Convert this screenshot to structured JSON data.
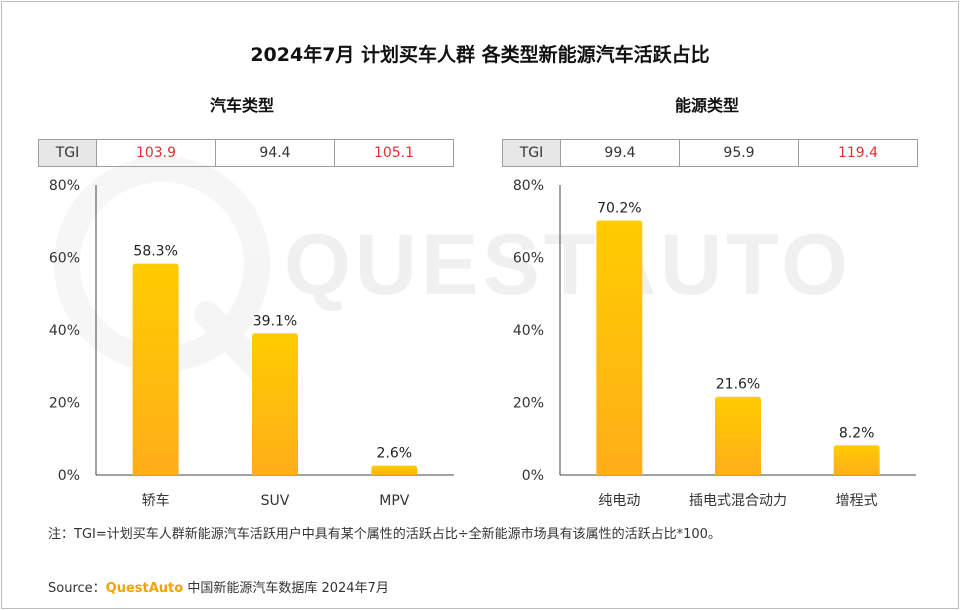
{
  "title": "2024年7月 计划买车人群 各类型新能源汽车活跃占比",
  "watermark": "QUESTAUTO",
  "colors": {
    "bar_top": "#ffcc00",
    "bar_bottom": "#ffae1a",
    "tgi_high": "#e0312f",
    "brand": "#f5a100"
  },
  "chart_data": [
    {
      "type": "bar",
      "title": "汽车类型",
      "categories": [
        "轿车",
        "SUV",
        "MPV"
      ],
      "values": [
        58.3,
        39.1,
        2.6
      ],
      "value_labels": [
        "58.3%",
        "39.1%",
        "2.6%"
      ],
      "ylim": [
        0,
        80
      ],
      "yticks": [
        "0%",
        "20%",
        "40%",
        "60%",
        "80%"
      ],
      "xlabel": "",
      "ylabel": "",
      "tgi_label": "TGI",
      "tgi": [
        "103.9",
        "94.4",
        "105.1"
      ],
      "grid": false
    },
    {
      "type": "bar",
      "title": "能源类型",
      "categories": [
        "纯电动",
        "插电式混合动力",
        "增程式"
      ],
      "values": [
        70.2,
        21.6,
        8.2
      ],
      "value_labels": [
        "70.2%",
        "21.6%",
        "8.2%"
      ],
      "ylim": [
        0,
        80
      ],
      "yticks": [
        "0%",
        "20%",
        "40%",
        "60%",
        "80%"
      ],
      "xlabel": "",
      "ylabel": "",
      "tgi_label": "TGI",
      "tgi": [
        "99.4",
        "95.9",
        "119.4"
      ],
      "grid": false
    }
  ],
  "note": "注：TGI=计划买车人群新能源汽车活跃用户中具有某个属性的活跃占比÷全新能源市场具有该属性的活跃占比*100。",
  "source": {
    "prefix": "Source：",
    "brand": "QuestAuto",
    "text": "中国新能源汽车数据库 2024年7月"
  }
}
